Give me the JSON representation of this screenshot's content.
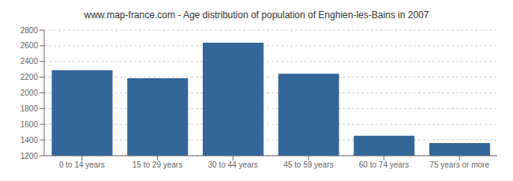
{
  "chart_data": {
    "type": "bar",
    "title": "www.map-france.com - Age distribution of population of Enghien-les-Bains in 2007",
    "categories": [
      "0 to 14 years",
      "15 to 29 years",
      "30 to 44 years",
      "45 to 59 years",
      "60 to 74 years",
      "75 years or more"
    ],
    "values": [
      2290,
      2185,
      2640,
      2245,
      1455,
      1360
    ],
    "color": "#336699",
    "ylim": [
      1200,
      2800
    ],
    "yticks": [
      1200,
      1400,
      1600,
      1800,
      2000,
      2200,
      2400,
      2600,
      2800
    ],
    "grid": true
  }
}
